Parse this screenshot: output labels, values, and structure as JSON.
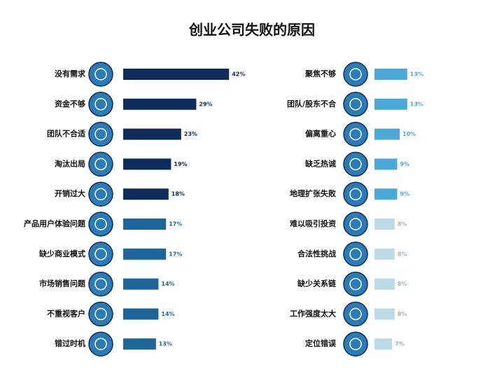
{
  "chart_data": {
    "type": "bar",
    "title": "创业公司失败的原因",
    "categories": [
      "没有需求",
      "资金不够",
      "团队不合适",
      "淘汰出局",
      "开销过大",
      "产品用户体验问题",
      "缺少商业模式",
      "市场销售问题",
      "不重视客户",
      "错过时机",
      "聚焦不够",
      "团队/股东不合",
      "偏离重心",
      "缺乏热诚",
      "地理扩张失败",
      "难以吸引投资",
      "合法性挑战",
      "缺少关系链",
      "工作强度太大",
      "定位错误"
    ],
    "values": [
      42,
      29,
      23,
      19,
      18,
      17,
      17,
      14,
      14,
      13,
      13,
      13,
      10,
      9,
      9,
      8,
      8,
      8,
      8,
      7
    ],
    "value_labels": [
      "42%",
      "29%",
      "23%",
      "19%",
      "18%",
      "17%",
      "17%",
      "14%",
      "14%",
      "13%",
      "13%",
      "13%",
      "10%",
      "9%",
      "9%",
      "8%",
      "8%",
      "8%",
      "8%",
      "7%"
    ],
    "colors": [
      "#0c2c5c",
      "#0c2c5c",
      "#0c2c5c",
      "#0c2c5c",
      "#0c2c5c",
      "#1c6699",
      "#1c6699",
      "#1c6699",
      "#1c6699",
      "#1c6699",
      "#4aa9d9",
      "#4aa9d9",
      "#4aa9d9",
      "#4aa9d9",
      "#4aa9d9",
      "#bcd9e6",
      "#bcd9e6",
      "#bcd9e6",
      "#bcd9e6",
      "#bcd9e6"
    ]
  }
}
